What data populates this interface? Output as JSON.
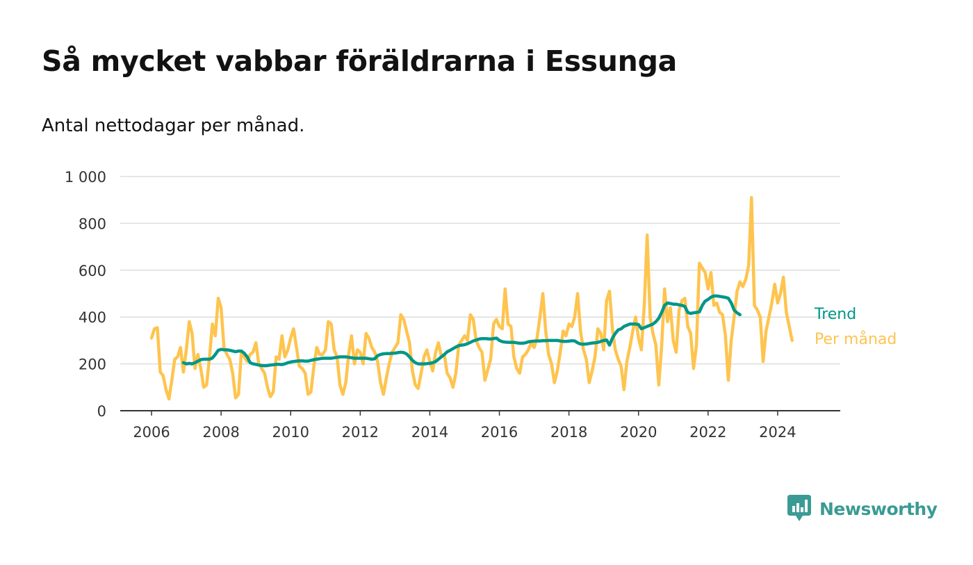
{
  "title": "Så mycket vabbar föräldrarna i Essunga",
  "subtitle": "Antal nettodagar per månad.",
  "brand": {
    "name": "Newsworthy",
    "icon": "newsworthy-logo-icon",
    "color": "#3a9b94"
  },
  "chart_data": {
    "type": "line",
    "title": "Så mycket vabbar föräldrarna i Essunga",
    "subtitle": "Antal nettodagar per månad.",
    "xlabel": "",
    "ylabel": "",
    "xlim": [
      2005.1,
      2025.8
    ],
    "ylim": [
      0,
      1000
    ],
    "x_ticks": [
      2006,
      2008,
      2010,
      2012,
      2014,
      2016,
      2018,
      2020,
      2022,
      2024
    ],
    "x_tick_labels": [
      "2006",
      "2008",
      "2010",
      "2012",
      "2014",
      "2016",
      "2018",
      "2020",
      "2022",
      "2024"
    ],
    "y_ticks": [
      0,
      200,
      400,
      600,
      800,
      1000
    ],
    "y_tick_labels": [
      "0",
      "200",
      "400",
      "600",
      "800",
      "1 000"
    ],
    "grid": true,
    "legend": "end-of-line labels",
    "series": [
      {
        "name": "Per månad",
        "color": "#fec44f",
        "start": 2006.0,
        "step": 0.08333,
        "values": [
          310,
          350,
          355,
          165,
          150,
          90,
          50,
          130,
          220,
          230,
          270,
          165,
          260,
          380,
          330,
          180,
          240,
          180,
          100,
          110,
          230,
          370,
          320,
          480,
          440,
          270,
          240,
          220,
          160,
          55,
          70,
          250,
          230,
          210,
          240,
          250,
          290,
          200,
          180,
          160,
          100,
          60,
          80,
          230,
          220,
          320,
          230,
          260,
          310,
          350,
          270,
          190,
          180,
          160,
          70,
          80,
          190,
          270,
          240,
          240,
          260,
          380,
          370,
          260,
          230,
          110,
          70,
          120,
          240,
          320,
          200,
          260,
          250,
          200,
          330,
          310,
          270,
          250,
          210,
          120,
          70,
          140,
          200,
          250,
          270,
          290,
          410,
          390,
          340,
          290,
          170,
          110,
          95,
          160,
          230,
          260,
          210,
          170,
          250,
          290,
          230,
          240,
          160,
          140,
          100,
          160,
          280,
          300,
          320,
          300,
          410,
          390,
          300,
          270,
          250,
          130,
          175,
          220,
          370,
          390,
          360,
          350,
          520,
          370,
          360,
          230,
          180,
          160,
          230,
          240,
          260,
          290,
          270,
          310,
          400,
          500,
          340,
          240,
          200,
          120,
          170,
          250,
          340,
          320,
          370,
          360,
          400,
          500,
          340,
          260,
          220,
          120,
          170,
          230,
          350,
          330,
          260,
          470,
          510,
          350,
          260,
          220,
          190,
          90,
          210,
          270,
          340,
          400,
          310,
          260,
          450,
          750,
          400,
          330,
          280,
          110,
          280,
          520,
          380,
          440,
          300,
          250,
          430,
          470,
          480,
          360,
          330,
          180,
          280,
          630,
          610,
          590,
          520,
          590,
          450,
          460,
          420,
          410,
          320,
          130,
          300,
          400,
          510,
          550,
          530,
          560,
          620,
          910,
          450,
          430,
          400,
          210,
          340,
          400,
          460,
          540,
          460,
          500,
          570,
          420,
          360,
          300
        ]
      },
      {
        "name": "Trend",
        "color": "#009688",
        "start": 2006.917,
        "step": 0.08333,
        "values": [
          205,
          200,
          202,
          200,
          205,
          212,
          218,
          220,
          220,
          220,
          225,
          240,
          258,
          262,
          260,
          260,
          258,
          255,
          252,
          255,
          255,
          245,
          230,
          205,
          200,
          198,
          195,
          193,
          192,
          193,
          195,
          196,
          198,
          198,
          197,
          200,
          205,
          208,
          210,
          212,
          213,
          213,
          212,
          212,
          215,
          218,
          220,
          222,
          224,
          224,
          224,
          224,
          226,
          228,
          230,
          230,
          230,
          228,
          226,
          224,
          224,
          224,
          224,
          224,
          222,
          220,
          222,
          235,
          240,
          243,
          244,
          244,
          245,
          246,
          248,
          250,
          248,
          242,
          230,
          215,
          205,
          200,
          200,
          200,
          201,
          202,
          205,
          210,
          220,
          230,
          240,
          252,
          258,
          265,
          272,
          278,
          280,
          282,
          286,
          292,
          298,
          302,
          306,
          308,
          308,
          307,
          306,
          308,
          310,
          300,
          295,
          293,
          292,
          292,
          292,
          290,
          288,
          288,
          290,
          294,
          296,
          297,
          298,
          298,
          299,
          299,
          300,
          300,
          300,
          300,
          298,
          296,
          296,
          297,
          299,
          298,
          290,
          285,
          284,
          285,
          287,
          289,
          290,
          292,
          296,
          300,
          302,
          280,
          310,
          330,
          345,
          350,
          360,
          365,
          370,
          370,
          370,
          368,
          350,
          355,
          360,
          365,
          370,
          380,
          395,
          420,
          450,
          460,
          458,
          455,
          455,
          452,
          450,
          445,
          420,
          415,
          418,
          420,
          422,
          450,
          468,
          475,
          485,
          490,
          490,
          488,
          486,
          484,
          480,
          460,
          430,
          418,
          410
        ]
      }
    ]
  }
}
